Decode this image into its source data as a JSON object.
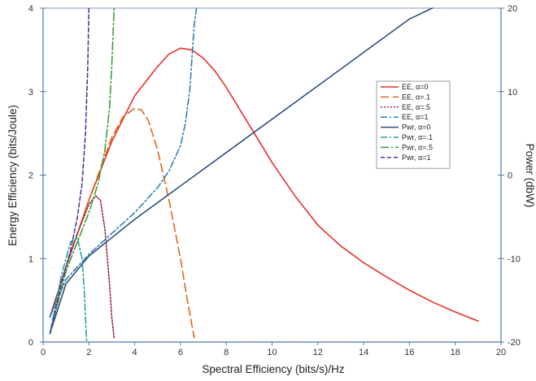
{
  "chart_data": {
    "type": "line",
    "title": "",
    "xlabel": "Spectral Efficiency (bits/s)/Hz",
    "ylabel_left": "Energy Efficiency (bits/Joule)",
    "ylabel_right": "Power (dbW)",
    "xlim": [
      0,
      20
    ],
    "ylim_left": [
      0,
      4
    ],
    "ylim_right": [
      -20,
      20
    ],
    "xticks": [
      "0",
      "2",
      "4",
      "6",
      "8",
      "10",
      "12",
      "14",
      "16",
      "18",
      "20"
    ],
    "yticks_left": [
      "0",
      "1",
      "2",
      "3",
      "4"
    ],
    "yticks_right": [
      "-20",
      "-10",
      "0",
      "10",
      "20"
    ],
    "grid": false,
    "legend_position": "right",
    "colors": {
      "axis": "#4a7ab0",
      "frame": "#7f9bbf",
      "ee0": "#e8302a",
      "ee01": "#e0661a",
      "ee05": "#9a2a3a",
      "ee1": "#2f7fb5",
      "pwr0": "#2f4f7f",
      "pwr01": "#2aa0a0",
      "pwr05": "#3aa03a",
      "pwr1": "#4a3aa0"
    },
    "series": [
      {
        "name": "EE, α=0",
        "axis": "left",
        "color_key": "ee0",
        "dash": "",
        "x": [
          0.3,
          1,
          2,
          3,
          4,
          5,
          5.5,
          6,
          6.5,
          7,
          7.5,
          8,
          9,
          10,
          11,
          12,
          13,
          14,
          15,
          16,
          17,
          18,
          19
        ],
        "y": [
          0.3,
          0.9,
          1.7,
          2.4,
          2.95,
          3.3,
          3.45,
          3.52,
          3.5,
          3.4,
          3.25,
          3.05,
          2.6,
          2.15,
          1.75,
          1.4,
          1.15,
          0.95,
          0.78,
          0.62,
          0.48,
          0.36,
          0.25
        ]
      },
      {
        "name": "EE, α=.1",
        "axis": "left",
        "color_key": "ee01",
        "dash": "10,5",
        "x": [
          0.3,
          1,
          2,
          3,
          3.5,
          4,
          4.3,
          4.6,
          5,
          5.5,
          6,
          6.3,
          6.6
        ],
        "y": [
          0.3,
          0.9,
          1.7,
          2.45,
          2.7,
          2.8,
          2.78,
          2.65,
          2.3,
          1.7,
          1.0,
          0.5,
          0.05
        ]
      },
      {
        "name": "EE, α=.5",
        "axis": "left",
        "color_key": "ee05",
        "dash": "2,2",
        "x": [
          0.3,
          1,
          1.5,
          2,
          2.3,
          2.5,
          2.7,
          2.9,
          3.0,
          3.1
        ],
        "y": [
          0.3,
          0.9,
          1.3,
          1.65,
          1.75,
          1.7,
          1.35,
          0.7,
          0.3,
          0.05
        ]
      },
      {
        "name": "EE, α=1",
        "axis": "left",
        "color_key": "ee1",
        "dash": "8,3,2,3",
        "x": [
          0.3,
          1,
          2,
          3,
          4,
          5,
          5.5,
          6,
          6.2,
          6.4,
          6.5,
          6.6,
          6.7
        ],
        "y": [
          0.3,
          0.75,
          1.05,
          1.3,
          1.55,
          1.85,
          2.05,
          2.35,
          2.6,
          3.0,
          3.4,
          3.8,
          4.0
        ]
      },
      {
        "name": "Pwr, α=0",
        "axis": "right",
        "color_key": "pwr0",
        "dash": "",
        "x": [
          0.3,
          1,
          2,
          4,
          6,
          8,
          10,
          12,
          14,
          16,
          17
        ],
        "y": [
          -19,
          -13,
          -9.7,
          -5.3,
          -1.3,
          2.7,
          6.7,
          10.7,
          14.7,
          18.7,
          20
        ]
      },
      {
        "name": "Pwr, α=.1",
        "axis": "right",
        "color_key": "pwr01",
        "dash": "8,3,2,3",
        "x": [
          0.3,
          0.8,
          1.2,
          1.5,
          1.7,
          1.8,
          1.85,
          1.9
        ],
        "y": [
          -19,
          -12,
          -8,
          -7.5,
          -10,
          -14,
          -17,
          -20
        ]
      },
      {
        "name": "Pwr, α=.5",
        "axis": "right",
        "color_key": "pwr05",
        "dash": "10,3,2,3",
        "x": [
          0.3,
          1,
          1.5,
          2,
          2.4,
          2.7,
          2.9,
          3.0,
          3.1
        ],
        "y": [
          -19,
          -11.5,
          -8,
          -4.5,
          -1,
          3,
          8,
          13,
          20
        ]
      },
      {
        "name": "Pwr, α=1",
        "axis": "right",
        "color_key": "pwr1",
        "dash": "5,3",
        "x": [
          0.3,
          0.8,
          1.2,
          1.5,
          1.7,
          1.85,
          1.95,
          2.0
        ],
        "y": [
          -19,
          -13,
          -9,
          -5,
          -1,
          5,
          13,
          20
        ]
      }
    ]
  }
}
